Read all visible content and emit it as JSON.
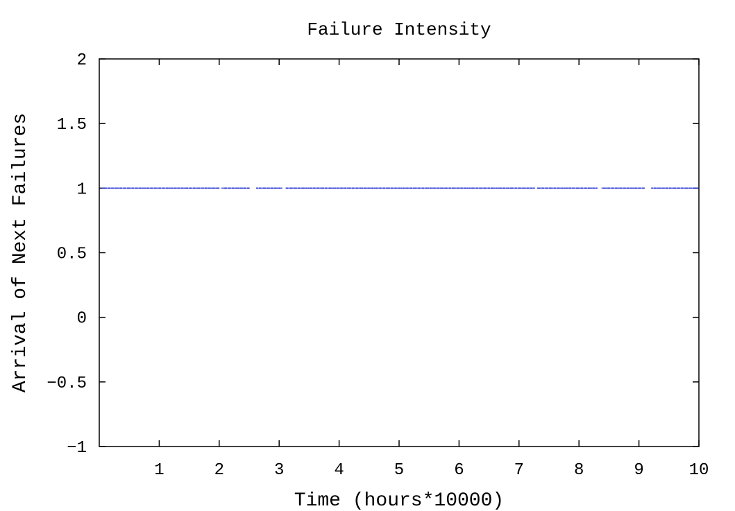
{
  "chart_data": {
    "type": "scatter",
    "title": "Failure Intensity",
    "xlabel": "Time (hours*10000)",
    "ylabel": "Arrival of Next Failures",
    "xlim": [
      0,
      10
    ],
    "ylim": [
      -1,
      2
    ],
    "x_ticks": [
      1,
      2,
      3,
      4,
      5,
      6,
      7,
      8,
      9,
      10
    ],
    "x_tick_labels": [
      "1",
      "2",
      "3",
      "4",
      "5",
      "6",
      "7",
      "8",
      "9",
      "10"
    ],
    "y_ticks": [
      -1,
      -0.5,
      0,
      0.5,
      1,
      1.5,
      2
    ],
    "y_tick_labels": [
      "−1",
      "−0.5",
      "0",
      "0.5",
      "1",
      "1.5",
      "2"
    ],
    "grid": false,
    "legend": "none",
    "series": [
      {
        "color": "#1f2fd0",
        "points_description_value": 1,
        "x_start": 0.05,
        "x_end": 10,
        "x_gaps": [
          [
            2.0,
            2.04
          ],
          [
            2.5,
            2.62
          ],
          [
            3.05,
            3.1
          ],
          [
            7.25,
            7.3
          ],
          [
            8.3,
            8.38
          ],
          [
            9.1,
            9.2
          ]
        ],
        "y": 1
      }
    ]
  }
}
